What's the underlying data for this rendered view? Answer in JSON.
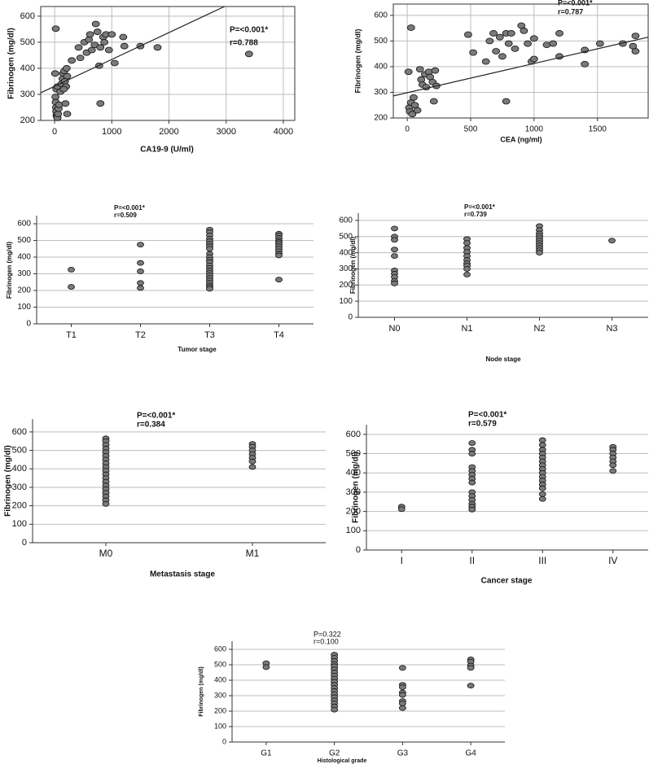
{
  "chart_data": [
    {
      "type": "scatter",
      "x_label": "CA19-9 (U/ml)",
      "y_label": "Fibrinogen (mg/dl)",
      "annotations": [
        "P=<0.001*",
        "r=0.788"
      ],
      "color": "#7a7a7a",
      "grid": true,
      "xlim": [
        -243,
        4200
      ],
      "xticks": [
        0,
        1000,
        2000,
        3000,
        4000
      ],
      "ylim": [
        200,
        637
      ],
      "yticks": [
        200,
        300,
        400,
        500,
        600
      ],
      "x": [
        20,
        10,
        15,
        20,
        25,
        30,
        35,
        40,
        50,
        60,
        70,
        80,
        30,
        50,
        100,
        120,
        140,
        150,
        170,
        180,
        200,
        210,
        220,
        160,
        190,
        220,
        300,
        420,
        450,
        520,
        560,
        600,
        620,
        650,
        700,
        720,
        750,
        780,
        800,
        850,
        870,
        900,
        950,
        1000,
        1050,
        1200,
        1220,
        800,
        1500,
        1800,
        3400
      ],
      "y": [
        552,
        380,
        290,
        270,
        250,
        235,
        220,
        215,
        210,
        225,
        245,
        260,
        320,
        330,
        310,
        340,
        360,
        380,
        390,
        350,
        330,
        400,
        370,
        320,
        265,
        225,
        430,
        480,
        440,
        500,
        460,
        510,
        530,
        470,
        490,
        570,
        540,
        410,
        480,
        520,
        500,
        530,
        470,
        530,
        420,
        520,
        485,
        265,
        485,
        480,
        455
      ],
      "fit": {
        "x": [
          -243,
          2971
        ],
        "y": [
          306,
          637
        ]
      }
    },
    {
      "type": "scatter",
      "x_label": "CEA (ng/ml)",
      "y_label": "Fibrinogen (mg/dl)",
      "annotations": [
        "P=<0.001*",
        "r=0.787"
      ],
      "color": "#7a7a7a",
      "grid": true,
      "xlim": [
        -110,
        1900
      ],
      "xticks": [
        0,
        500,
        1000,
        1500
      ],
      "ylim": [
        200,
        644
      ],
      "yticks": [
        200,
        300,
        400,
        500,
        600
      ],
      "x": [
        30,
        10,
        15,
        20,
        30,
        40,
        50,
        60,
        80,
        100,
        110,
        120,
        140,
        150,
        170,
        180,
        200,
        220,
        230,
        210,
        480,
        520,
        620,
        650,
        680,
        700,
        730,
        750,
        780,
        800,
        820,
        850,
        900,
        920,
        950,
        980,
        1000,
        1000,
        1100,
        1150,
        1200,
        1200,
        1400,
        1400,
        1520,
        1700,
        1780,
        1800,
        1800,
        780
      ],
      "y": [
        552,
        380,
        240,
        225,
        260,
        215,
        280,
        250,
        230,
        390,
        350,
        330,
        370,
        320,
        380,
        360,
        340,
        385,
        325,
        265,
        525,
        455,
        420,
        500,
        530,
        460,
        515,
        440,
        530,
        490,
        530,
        470,
        560,
        540,
        490,
        420,
        510,
        430,
        485,
        490,
        530,
        440,
        465,
        410,
        490,
        490,
        480,
        520,
        460,
        265
      ],
      "fit": {
        "x": [
          -110,
          1900
        ],
        "y": [
          286,
          515
        ]
      }
    },
    {
      "type": "strip",
      "x_label": "Tumor stage",
      "y_label": "Fibrinogen (mg/dl)",
      "annotations": [
        "P=<0.001*",
        "r=0.509"
      ],
      "color": "#7a7a7a",
      "grid": true,
      "ylim": [
        0,
        649
      ],
      "yticks": [
        0,
        100,
        200,
        300,
        400,
        500,
        600
      ],
      "groups": [
        {
          "category": "T1",
          "values": [
            325,
            222
          ]
        },
        {
          "category": "T2",
          "values": [
            475,
            365,
            315,
            245,
            215
          ]
        },
        {
          "category": "T3",
          "values": [
            565,
            550,
            530,
            510,
            495,
            480,
            465,
            450,
            420,
            400,
            385,
            370,
            350,
            335,
            320,
            305,
            290,
            275,
            260,
            245,
            230,
            220,
            210
          ]
        },
        {
          "category": "T4",
          "values": [
            540,
            530,
            515,
            500,
            490,
            480,
            465,
            450,
            435,
            420,
            410,
            265
          ]
        }
      ]
    },
    {
      "type": "strip",
      "x_label": "Node stage",
      "y_label": "Fibrinogen (mg/dl)",
      "annotations": [
        "P=<0.001*",
        "r=0.739"
      ],
      "color": "#7a7a7a",
      "grid": true,
      "ylim": [
        0,
        645
      ],
      "yticks": [
        0,
        100,
        200,
        300,
        400,
        500,
        600
      ],
      "groups": [
        {
          "category": "N0",
          "values": [
            550,
            500,
            480,
            420,
            380,
            290,
            270,
            250,
            225,
            210
          ]
        },
        {
          "category": "N1",
          "values": [
            485,
            460,
            430,
            405,
            380,
            355,
            335,
            320,
            300,
            265
          ]
        },
        {
          "category": "N2",
          "values": [
            565,
            540,
            520,
            505,
            490,
            475,
            460,
            445,
            430,
            415,
            400
          ]
        },
        {
          "category": "N3",
          "values": [
            475
          ]
        }
      ]
    },
    {
      "type": "strip",
      "x_label": "Metastasis stage",
      "y_label": "Fibrinogen (mg/dl)",
      "annotations": [
        "P=<0.001*",
        "r=0.384"
      ],
      "color": "#7a7a7a",
      "grid": true,
      "ylim": [
        0,
        670
      ],
      "yticks": [
        0,
        100,
        200,
        300,
        400,
        500,
        600
      ],
      "groups": [
        {
          "category": "M0",
          "values": [
            565,
            550,
            530,
            510,
            490,
            470,
            450,
            430,
            410,
            390,
            370,
            350,
            330,
            310,
            290,
            270,
            250,
            230,
            210
          ]
        },
        {
          "category": "M1",
          "values": [
            535,
            520,
            500,
            480,
            460,
            440,
            410
          ]
        }
      ]
    },
    {
      "type": "strip",
      "x_label": "Cancer stage",
      "y_label": "Fibrinogen (mg/dl)",
      "annotations": [
        "P=<0.001*",
        "r=0.579"
      ],
      "color": "#7a7a7a",
      "grid": true,
      "ylim": [
        0,
        650
      ],
      "yticks": [
        0,
        100,
        200,
        300,
        400,
        500,
        600
      ],
      "groups": [
        {
          "category": "I",
          "values": [
            225,
            212
          ]
        },
        {
          "category": "II",
          "values": [
            555,
            520,
            500,
            430,
            410,
            390,
            370,
            350,
            300,
            280,
            260,
            240,
            225,
            210
          ]
        },
        {
          "category": "III",
          "values": [
            570,
            545,
            520,
            500,
            480,
            460,
            440,
            420,
            400,
            380,
            360,
            340,
            320,
            290,
            265
          ]
        },
        {
          "category": "IV",
          "values": [
            535,
            520,
            500,
            480,
            460,
            440,
            410
          ]
        }
      ]
    },
    {
      "type": "strip",
      "x_label": "Histological grade",
      "y_label": "Fibrinogen (mg/dl)",
      "annotations": [
        "P=0.322",
        "r=0.100"
      ],
      "color": "#7a7a7a",
      "grid": true,
      "ylim": [
        0,
        653
      ],
      "yticks": [
        0,
        100,
        200,
        300,
        400,
        500,
        600
      ],
      "groups": [
        {
          "category": "G1",
          "values": [
            510,
            485
          ]
        },
        {
          "category": "G2",
          "values": [
            565,
            545,
            525,
            505,
            490,
            470,
            450,
            430,
            410,
            390,
            370,
            350,
            330,
            310,
            290,
            270,
            250,
            230,
            210
          ]
        },
        {
          "category": "G3",
          "values": [
            480,
            370,
            355,
            320,
            305,
            265,
            250,
            220
          ]
        },
        {
          "category": "G4",
          "values": [
            535,
            520,
            495,
            480,
            365
          ]
        }
      ]
    }
  ]
}
